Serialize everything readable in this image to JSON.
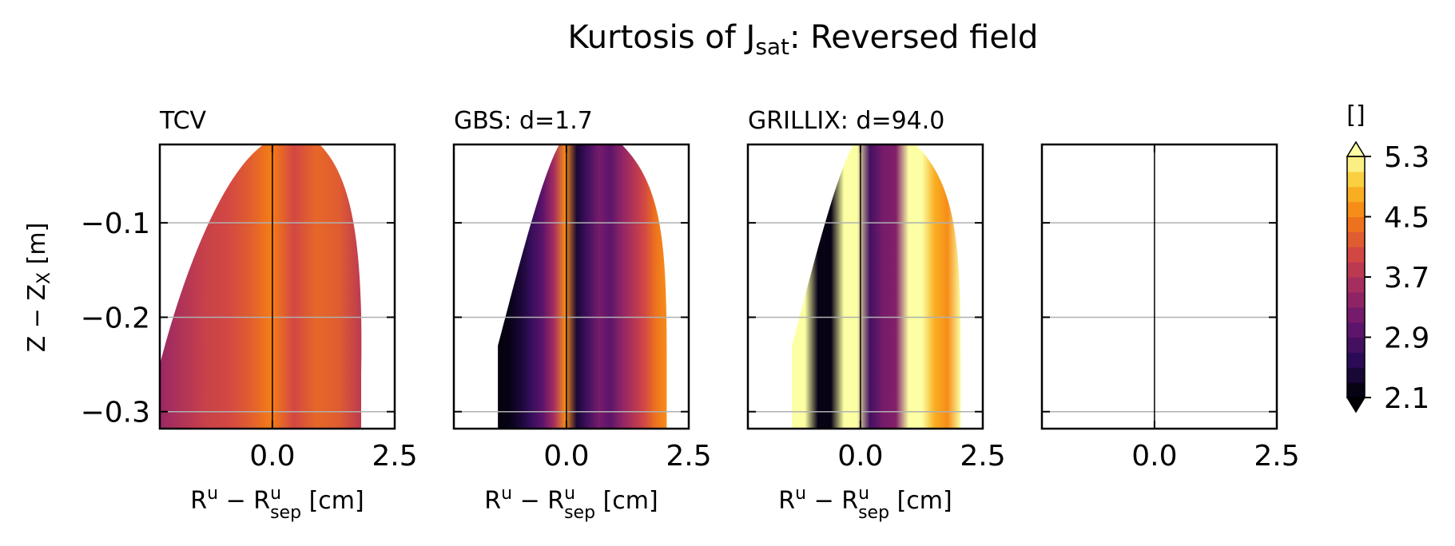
{
  "title": "Kurtosis of J",
  "title_sub": "sat",
  "title_suffix": ": Reversed field",
  "ylabel": "Z − Z",
  "ylabel_sub": "X",
  "ylabel_suffix": " [m]",
  "xlabel_main": "R",
  "xlabel_sup1": "u",
  "xlabel_minus": " − R",
  "xlabel_sup2": "u",
  "xlabel_sub2": "sep",
  "xlabel_unit": " [cm]",
  "colorbar_label": "[]",
  "colors": {
    "frame": "#000000",
    "grid": "#b0b0b0",
    "separatrix": "#000000"
  },
  "chart_data": {
    "type": "heatmap",
    "colormap": "inferno",
    "xlim": [
      -2.3,
      2.5
    ],
    "ylim": [
      -0.318,
      -0.017
    ],
    "x_ticks": [
      0.0,
      2.5
    ],
    "x_tick_labels": [
      "0.0",
      "2.5"
    ],
    "y_ticks": [
      -0.1,
      -0.2,
      -0.3
    ],
    "y_tick_labels": [
      "−0.1",
      "−0.2",
      "−0.3"
    ],
    "grid": "horizontal",
    "separatrix_x": 0.0,
    "colorbar": {
      "min": 2.1,
      "max": 5.3,
      "ticks": [
        5.3,
        4.5,
        3.7,
        2.9,
        2.1
      ],
      "tick_labels": [
        "5.3",
        "4.5",
        "3.7",
        "2.9",
        "2.1"
      ],
      "extend": "both"
    },
    "panels": [
      {
        "title": "TCV",
        "profile": [
          3.5,
          3.7,
          3.9,
          4.0,
          4.2,
          4.5,
          4.0,
          4.3,
          4.2,
          3.8
        ],
        "lower_left_value": 3.4
      },
      {
        "title": "GBS: d=1.7",
        "profile": [
          2.15,
          2.2,
          2.4,
          2.7,
          3.0,
          3.6,
          4.6,
          2.4,
          2.8,
          3.2,
          3.0,
          3.4,
          3.7,
          4.0,
          4.4,
          4.6
        ]
      },
      {
        "title": "GRILLIX: d=94.0",
        "profile": [
          5.3,
          5.3,
          2.2,
          2.2,
          5.3,
          5.3,
          2.8,
          3.2,
          3.3,
          5.3,
          5.3,
          4.8,
          4.6,
          5.3
        ]
      },
      {
        "title": "",
        "profile": []
      }
    ]
  }
}
